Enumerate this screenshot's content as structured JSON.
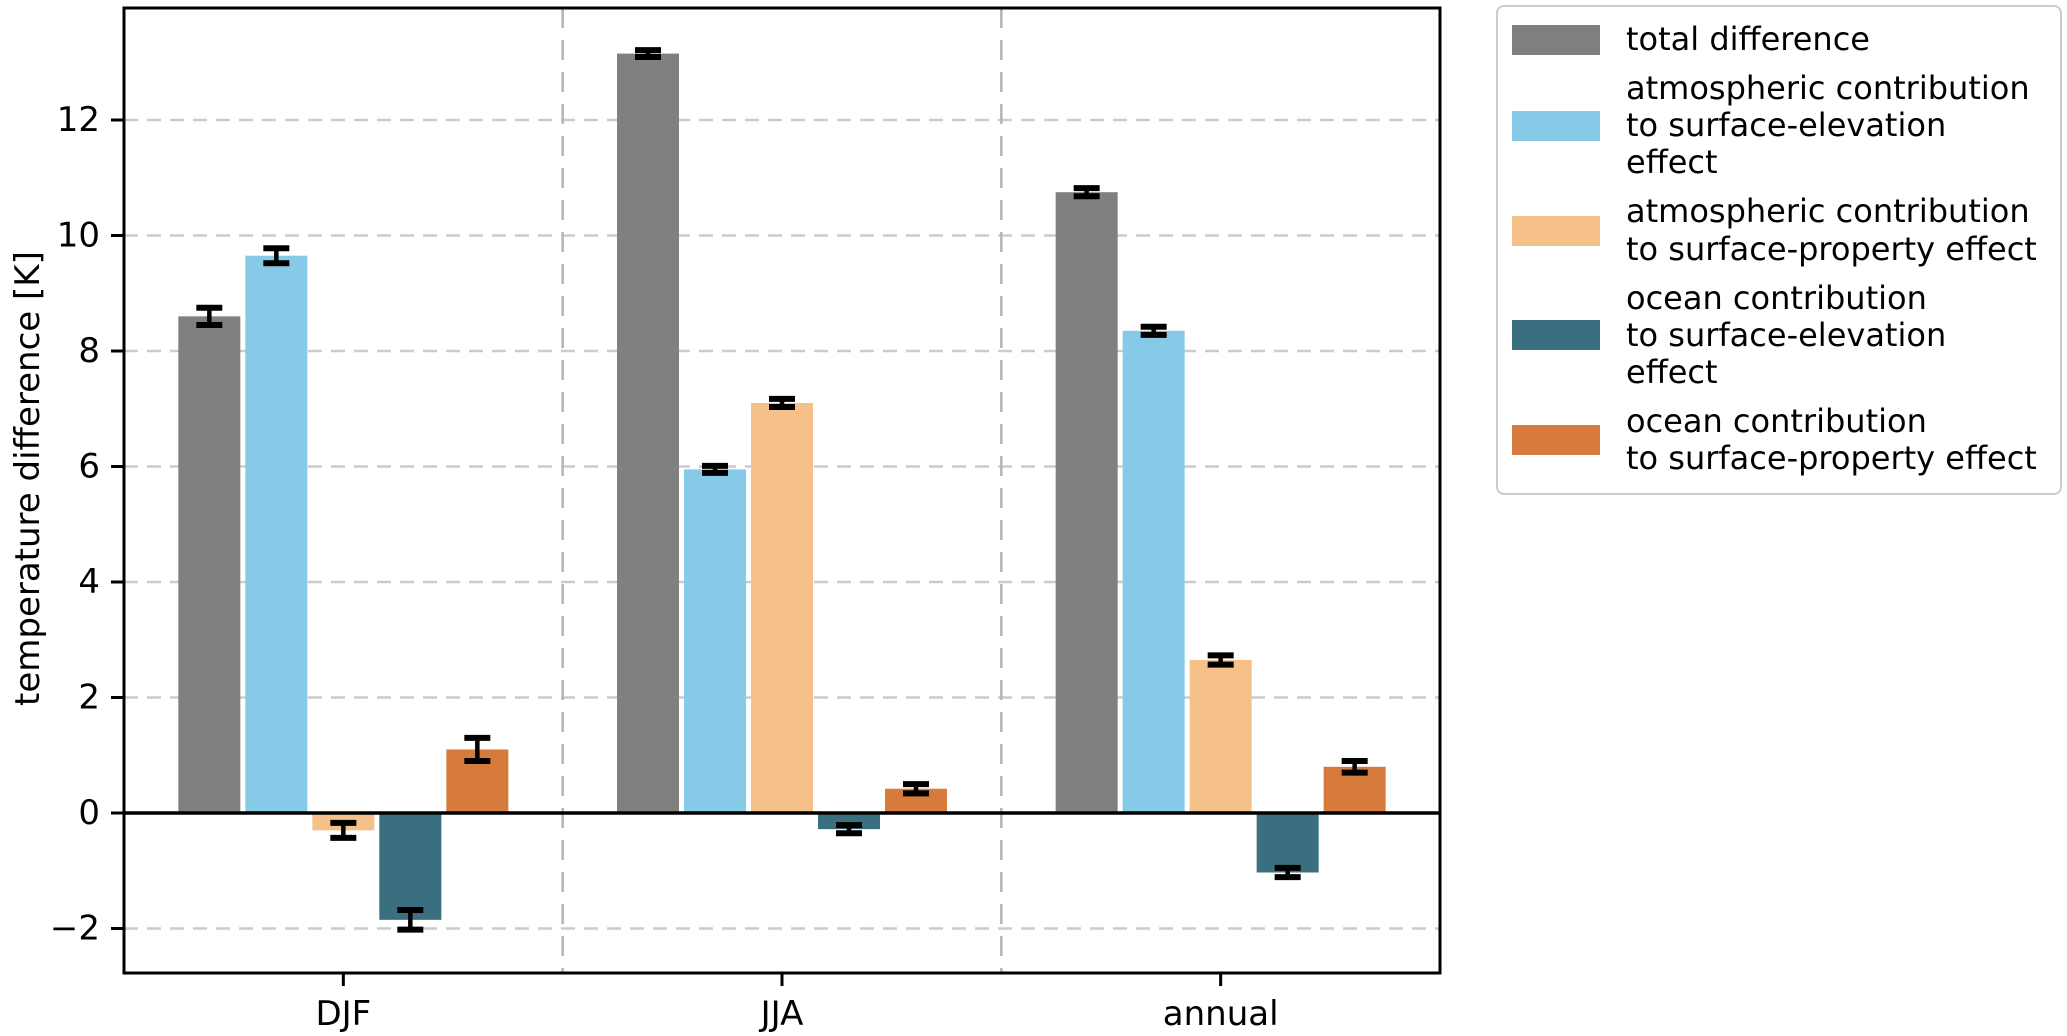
{
  "chart_data": {
    "type": "bar",
    "title": "",
    "ylabel": "temperature difference [K]",
    "xlabel": "",
    "categories": [
      "DJF",
      "JJA",
      "annual"
    ],
    "series": [
      {
        "name": "total difference",
        "color": "#808080",
        "values": [
          8.6,
          13.15,
          10.75
        ],
        "errors": [
          0.15,
          0.06,
          0.07
        ]
      },
      {
        "name": "atmospheric contribution\nto surface-elevation effect",
        "color": "#87CAE8",
        "values": [
          9.65,
          5.95,
          8.35
        ],
        "errors": [
          0.13,
          0.06,
          0.07
        ]
      },
      {
        "name": "atmospheric contribution\nto surface-property effect",
        "color": "#F5C189",
        "values": [
          -0.3,
          7.1,
          2.65
        ],
        "errors": [
          0.13,
          0.07,
          0.08
        ]
      },
      {
        "name": "ocean contribution\nto surface-elevation effect",
        "color": "#396F7F",
        "values": [
          -1.85,
          -0.28,
          -1.03
        ],
        "errors": [
          0.17,
          0.07,
          0.08
        ]
      },
      {
        "name": "ocean contribution\nto surface-property effect",
        "color": "#D67B3B",
        "values": [
          1.1,
          0.42,
          0.8
        ],
        "errors": [
          0.2,
          0.08,
          0.1
        ]
      }
    ],
    "yticks": [
      -2,
      0,
      2,
      4,
      6,
      8,
      10,
      12
    ],
    "grid_yticks": [
      -2,
      2,
      4,
      6,
      8,
      10,
      12
    ],
    "ylim": [
      -2.77,
      13.94
    ],
    "grid": true,
    "group_separators": true,
    "zero_line": true,
    "legend_position": "outside upper right",
    "error_bar_color": "#000000",
    "grid_color": "#cccccc",
    "separator_color": "#b5b5b5"
  }
}
